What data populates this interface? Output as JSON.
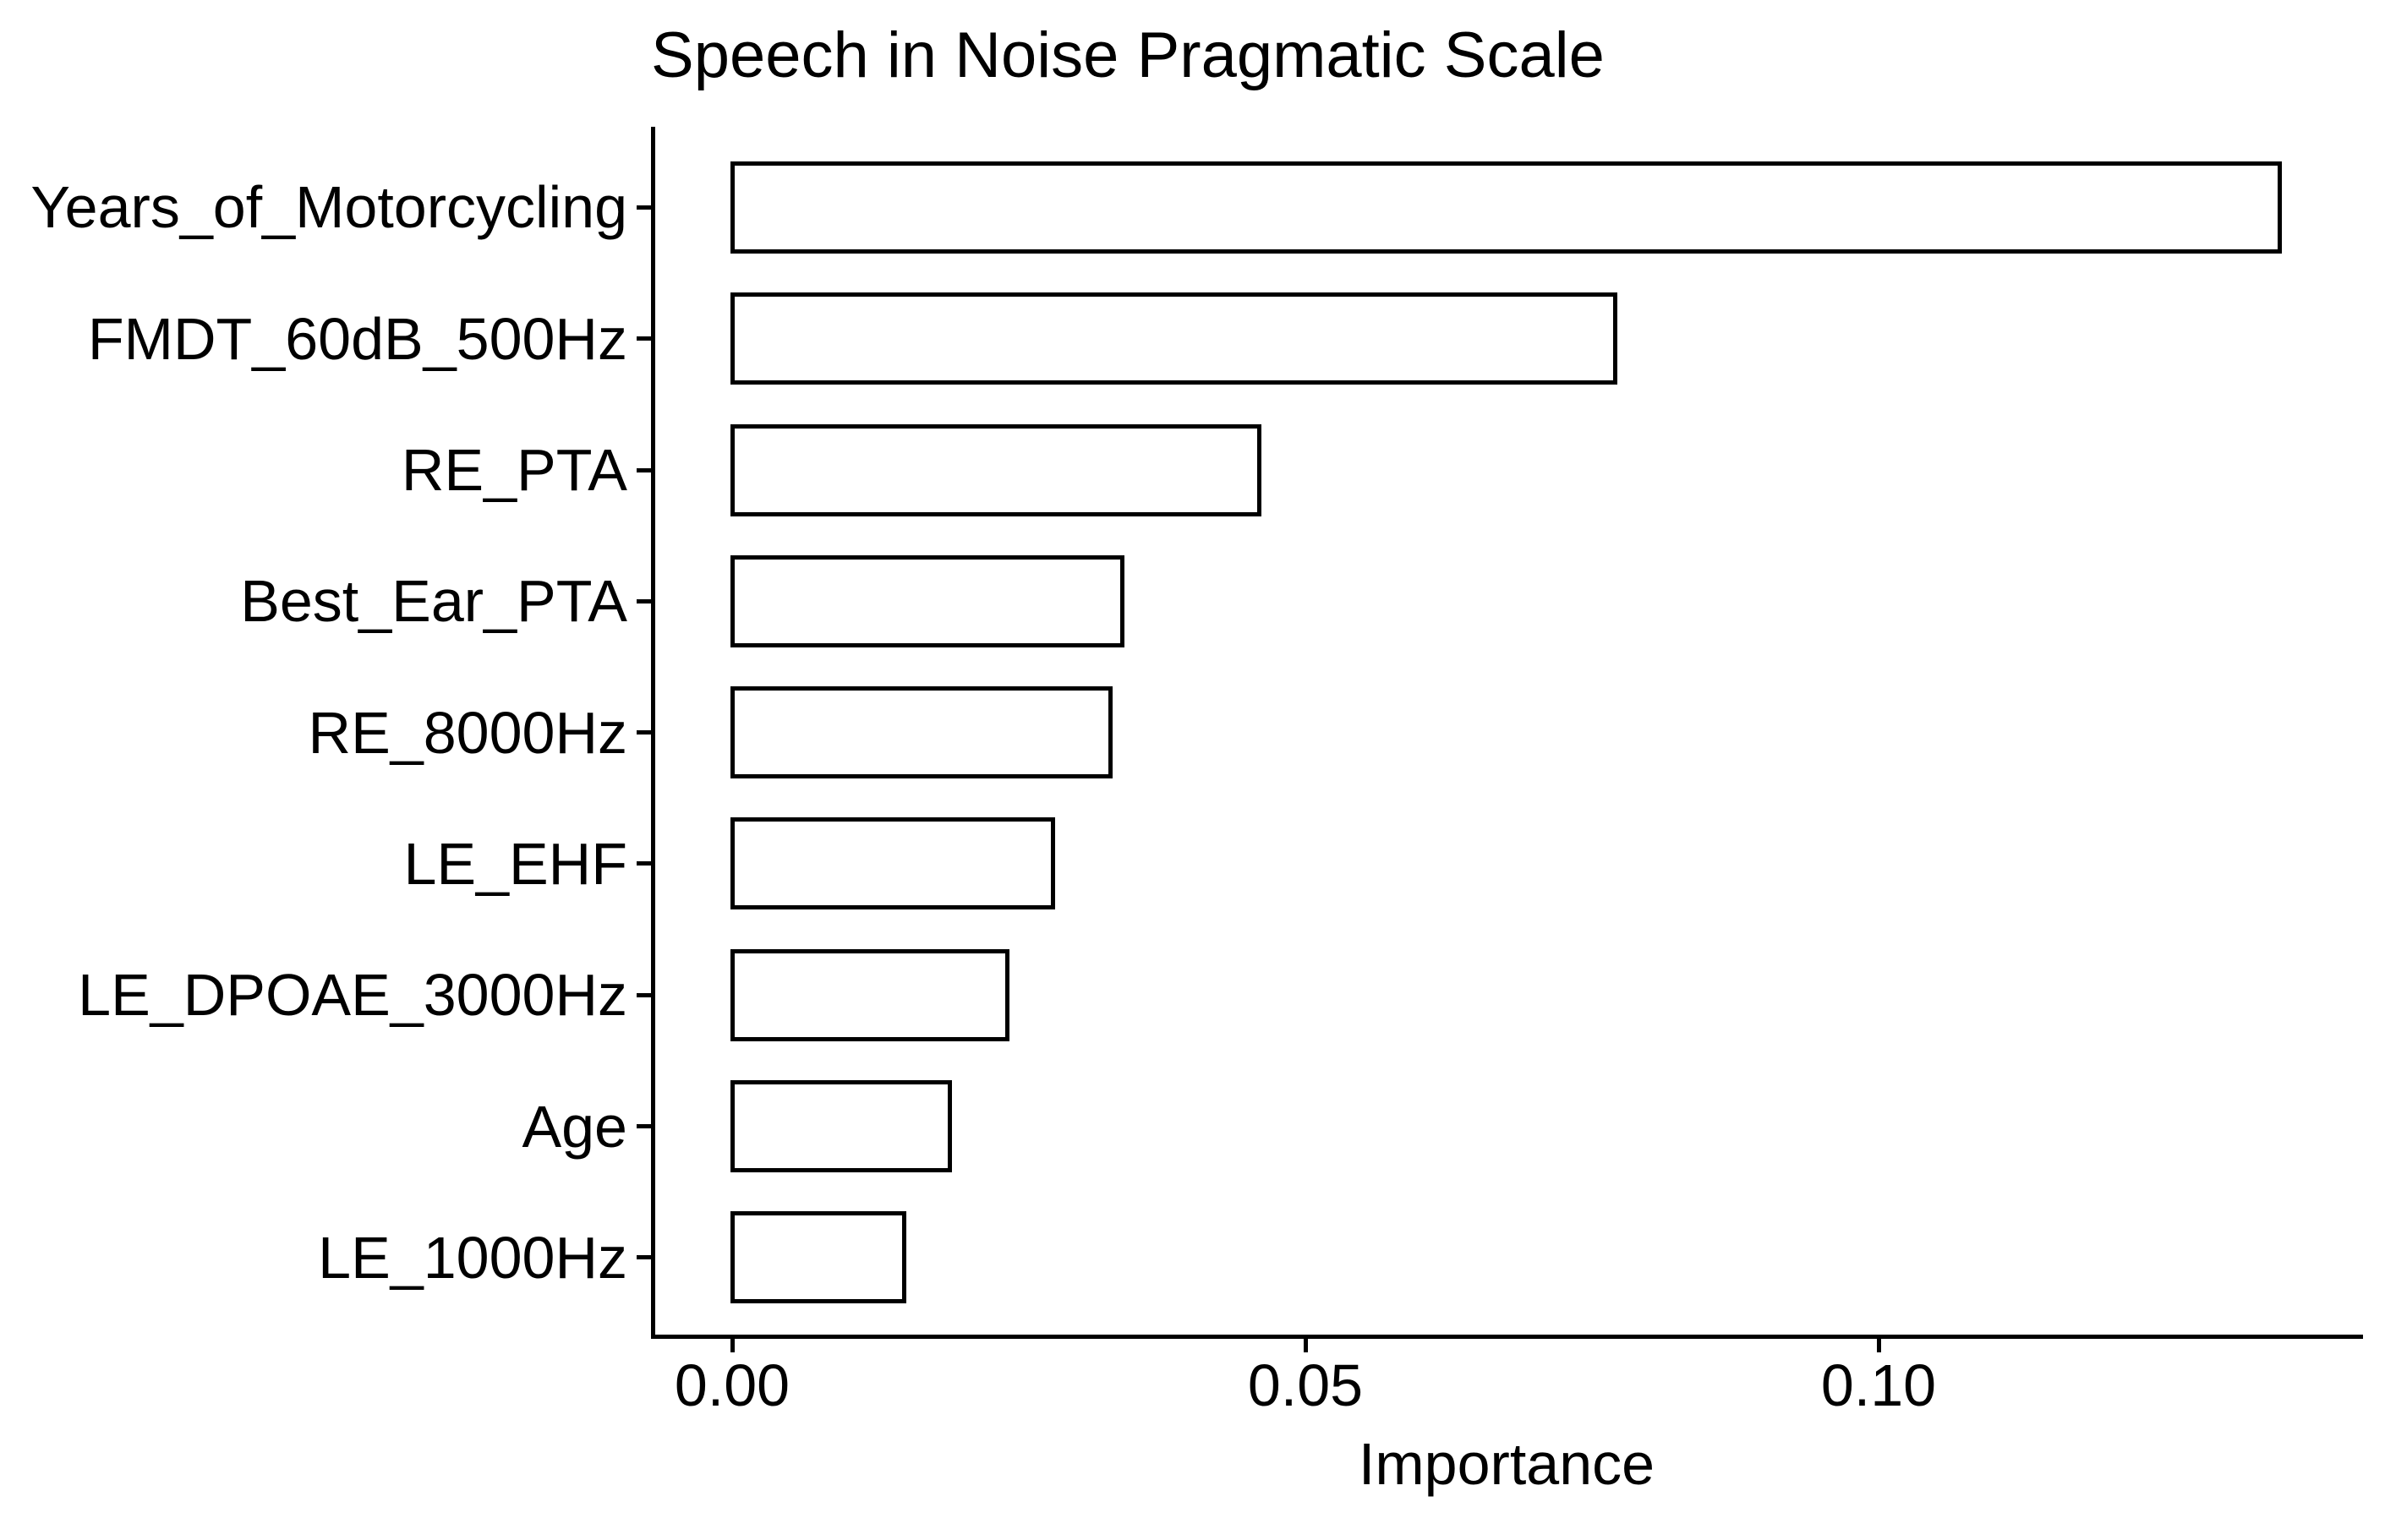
{
  "chart_data": {
    "type": "bar",
    "orientation": "horizontal",
    "title": "Speech in Noise Pragmatic Scale",
    "xlabel": "Importance",
    "ylabel": "",
    "categories": [
      "Years_of_Motorcycling",
      "FMDT_60dB_500Hz",
      "RE_PTA",
      "Best_Ear_PTA",
      "RE_8000Hz",
      "LE_EHF",
      "LE_DPOAE_3000Hz",
      "Age",
      "LE_1000Hz"
    ],
    "values": [
      0.135,
      0.077,
      0.046,
      0.034,
      0.033,
      0.028,
      0.024,
      0.019,
      0.015
    ],
    "x_ticks": [
      {
        "value": 0.0,
        "label": "0.00"
      },
      {
        "value": 0.05,
        "label": "0.05"
      },
      {
        "value": 0.1,
        "label": "0.10"
      }
    ],
    "xlim": [
      -0.007,
      0.142
    ],
    "grid": "off",
    "legend": "none",
    "colors": {
      "bar_fill": "#ffffff",
      "bar_border": "#000000",
      "axis": "#000000",
      "text": "#000000",
      "background": "#ffffff"
    }
  }
}
